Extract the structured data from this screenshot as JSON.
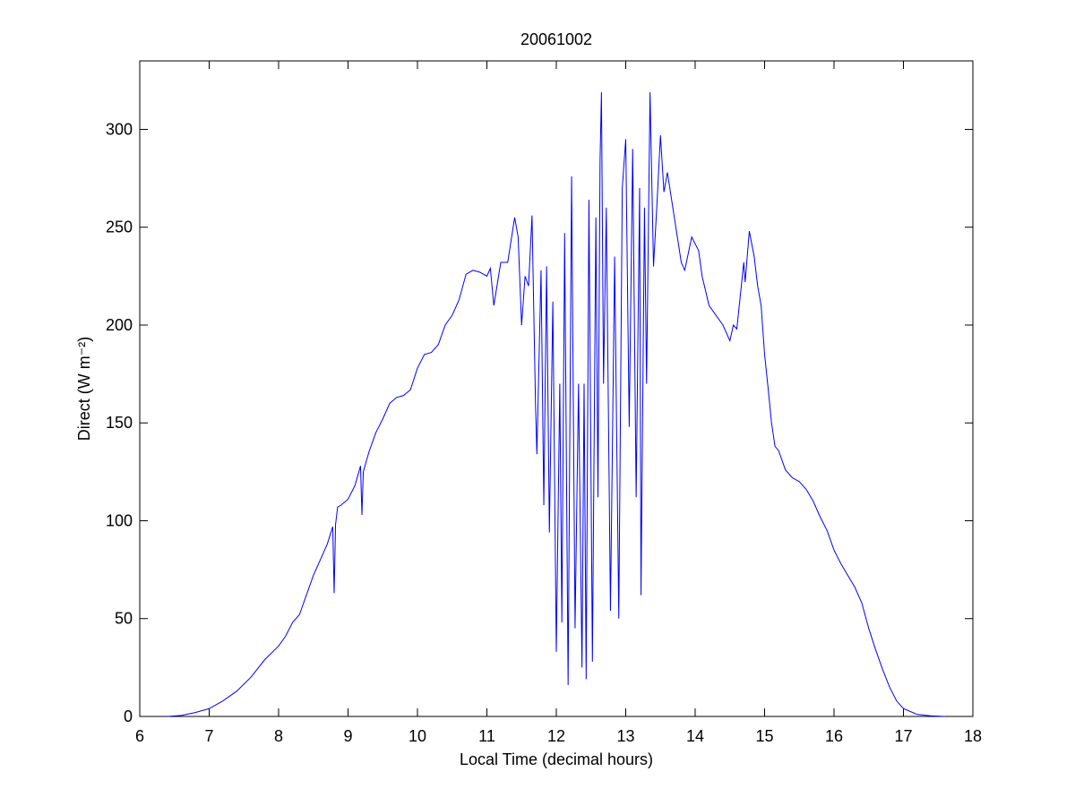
{
  "chart_data": {
    "type": "line",
    "title": "20061002",
    "x_label": "Local Time (decimal hours)",
    "y_label": "Direct (W m⁻²)",
    "xlim": [
      6,
      18
    ],
    "xticks": [
      6,
      7,
      8,
      9,
      10,
      11,
      12,
      13,
      14,
      15,
      16,
      17,
      18
    ],
    "ylim": [
      0,
      335
    ],
    "yticks": [
      0,
      50,
      100,
      150,
      200,
      250,
      300
    ],
    "grid": false,
    "x": [
      6.4,
      6.6,
      6.8,
      7.0,
      7.2,
      7.4,
      7.6,
      7.8,
      8.0,
      8.1,
      8.2,
      8.3,
      8.4,
      8.5,
      8.6,
      8.7,
      8.78,
      8.8,
      8.82,
      8.85,
      8.9,
      9.0,
      9.1,
      9.18,
      9.2,
      9.22,
      9.3,
      9.4,
      9.5,
      9.6,
      9.7,
      9.8,
      9.9,
      10.0,
      10.1,
      10.2,
      10.3,
      10.4,
      10.5,
      10.6,
      10.7,
      10.8,
      10.9,
      11.0,
      11.05,
      11.1,
      11.2,
      11.3,
      11.4,
      11.45,
      11.5,
      11.55,
      11.6,
      11.65,
      11.7,
      11.72,
      11.78,
      11.82,
      11.86,
      11.9,
      11.95,
      12.0,
      12.05,
      12.08,
      12.12,
      12.17,
      12.22,
      12.27,
      12.32,
      12.37,
      12.4,
      12.43,
      12.47,
      12.52,
      12.57,
      12.6,
      12.63,
      12.65,
      12.68,
      12.72,
      12.78,
      12.84,
      12.9,
      12.95,
      13.0,
      13.05,
      13.1,
      13.15,
      13.2,
      13.22,
      13.27,
      13.3,
      13.35,
      13.4,
      13.45,
      13.5,
      13.55,
      13.6,
      13.7,
      13.8,
      13.85,
      13.95,
      14.05,
      14.1,
      14.2,
      14.3,
      14.4,
      14.5,
      14.55,
      14.6,
      14.7,
      14.72,
      14.78,
      14.85,
      14.9,
      14.95,
      15.0,
      15.05,
      15.1,
      15.15,
      15.2,
      15.3,
      15.4,
      15.5,
      15.6,
      15.7,
      15.8,
      15.9,
      16.0,
      16.1,
      16.2,
      16.3,
      16.4,
      16.5,
      16.6,
      16.7,
      16.8,
      16.9,
      17.0,
      17.2,
      17.4,
      17.6
    ],
    "series": [
      {
        "color": "#0000ff",
        "values": [
          0,
          0.5,
          2,
          4,
          8,
          13,
          20,
          29,
          36,
          41,
          48,
          52,
          62,
          72,
          80,
          88,
          97,
          63,
          98,
          107,
          108,
          111,
          118,
          128,
          103,
          125,
          135,
          145,
          152,
          160,
          163,
          164,
          167,
          178,
          185,
          186,
          190,
          200,
          205,
          213,
          226,
          228,
          227,
          225,
          229,
          210,
          232,
          232,
          255,
          245,
          200,
          225,
          220,
          256,
          160,
          134,
          228,
          108,
          230,
          94,
          212,
          33,
          170,
          48,
          247,
          16,
          276,
          45,
          170,
          25,
          170,
          19,
          264,
          28,
          255,
          112,
          284,
          319,
          170,
          260,
          54,
          235,
          50,
          270,
          295,
          148,
          290,
          112,
          270,
          62,
          260,
          170,
          319,
          230,
          262,
          297,
          268,
          278,
          255,
          232,
          228,
          245,
          238,
          225,
          210,
          205,
          200,
          192,
          200,
          198,
          232,
          222,
          248,
          235,
          220,
          210,
          185,
          168,
          150,
          138,
          136,
          126,
          122,
          120,
          116,
          110,
          102,
          95,
          85,
          78,
          72,
          66,
          58,
          45,
          34,
          24,
          15,
          8,
          4,
          1,
          0.3,
          0
        ]
      }
    ]
  }
}
